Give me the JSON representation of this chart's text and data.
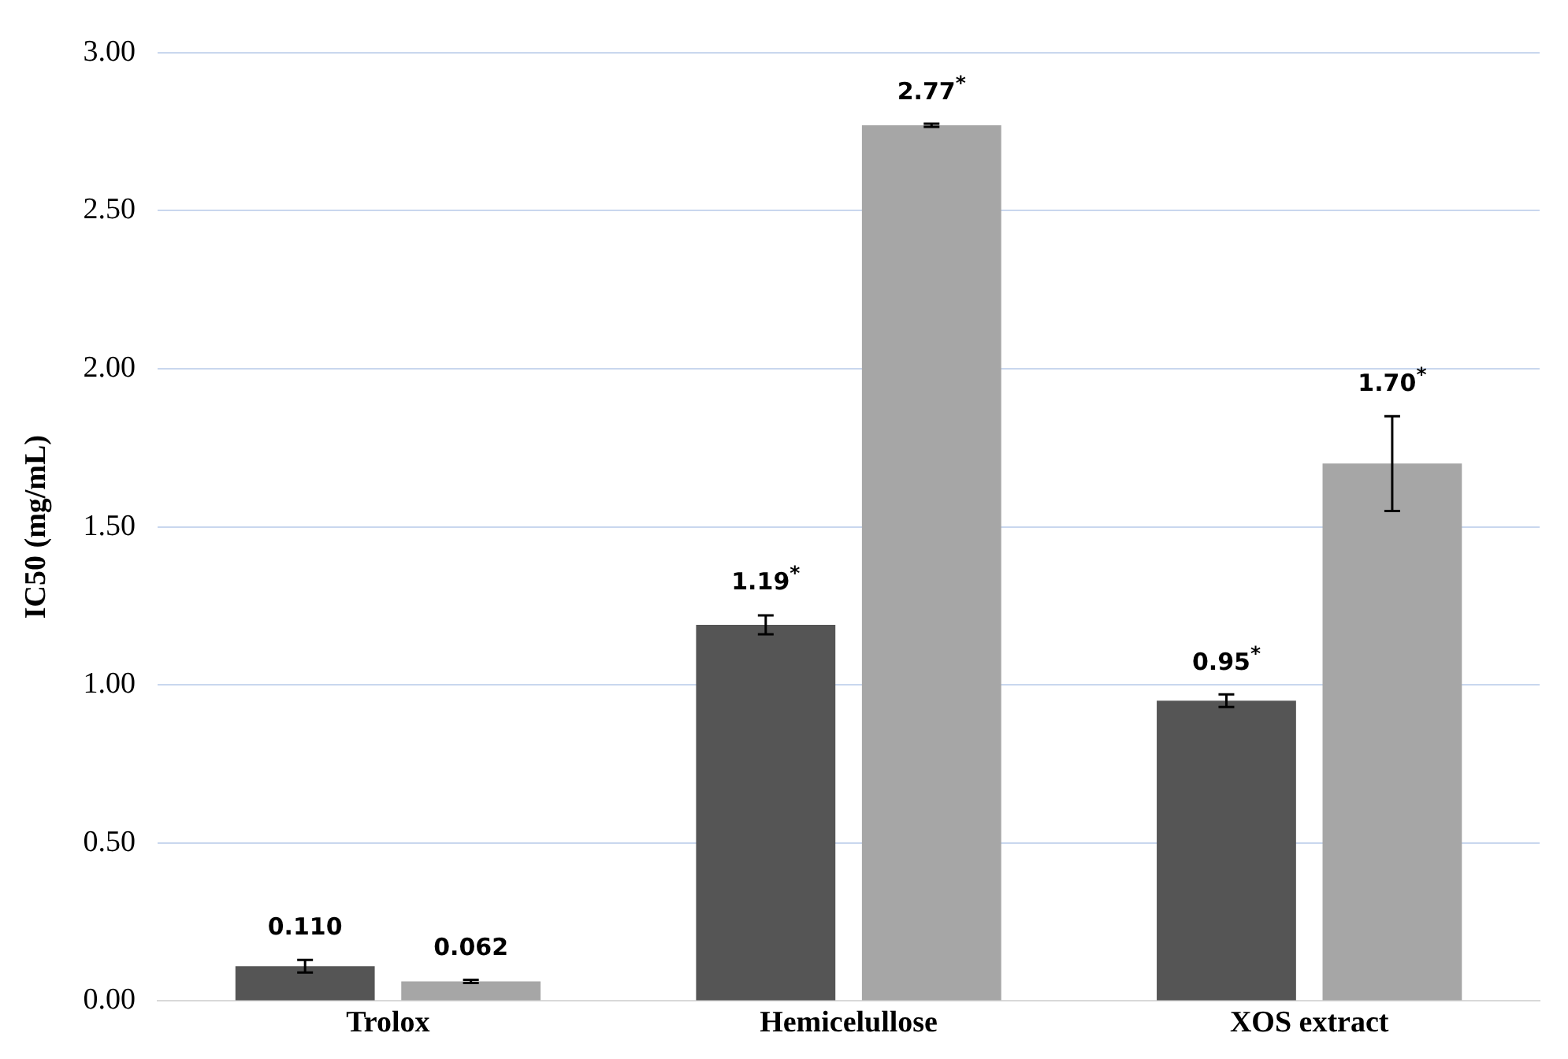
{
  "chart_data": {
    "type": "bar",
    "ylabel": "IC50 (mg/mL)",
    "categories": [
      "Trolox",
      "Hemicelullose",
      "XOS extract"
    ],
    "series": [
      {
        "color": "#555555",
        "values": [
          0.11,
          1.19,
          0.95
        ],
        "errors": [
          0.02,
          0.03,
          0.02
        ],
        "value_labels": [
          "0.110",
          "1.19$^{*}$",
          "0.95$^{*}$"
        ]
      },
      {
        "color": "#a6a6a6",
        "values": [
          0.062,
          2.77,
          1.7
        ],
        "errors": [
          0.005,
          0.005,
          0.15
        ],
        "value_labels": [
          "0.062",
          "2.77$^{*}$",
          "1.70$^{*}$"
        ]
      }
    ],
    "ylim": [
      0,
      3
    ],
    "yticks": [
      {
        "value": 0,
        "label": "0.00"
      },
      {
        "value": 0.5,
        "label": "0.50"
      },
      {
        "value": 1,
        "label": "1.00"
      },
      {
        "value": 1.5,
        "label": "1.50"
      },
      {
        "value": 2,
        "label": "2.00"
      },
      {
        "value": 2.5,
        "label": "2.50"
      },
      {
        "value": 3,
        "label": "3.00"
      }
    ],
    "grid": "y",
    "legend": false
  }
}
